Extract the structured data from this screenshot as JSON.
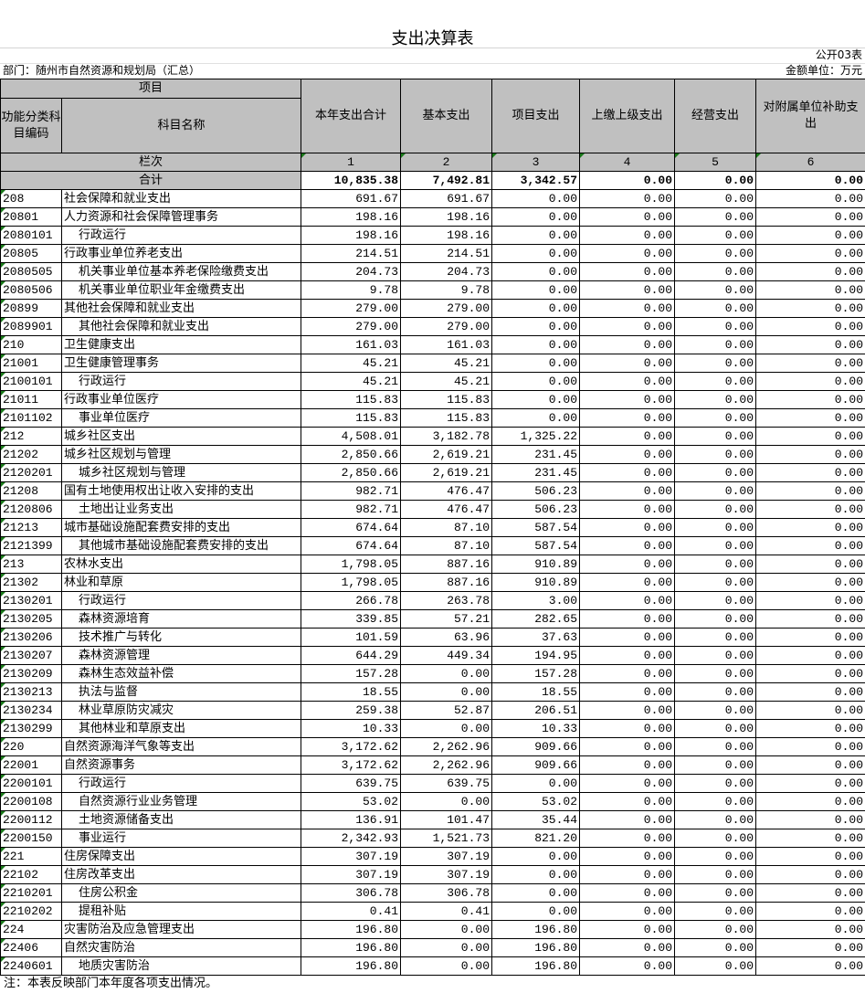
{
  "title": "支出决算表",
  "form_no": "公开03表",
  "department": "部门：随州市自然资源和规划局（汇总）",
  "unit": "金额单位：万元",
  "header": {
    "item": "项目",
    "code": "功能分类科目编码",
    "name": "科目名称",
    "columns": [
      "本年支出合计",
      "基本支出",
      "项目支出",
      "上缴上级支出",
      "经营支出",
      "对附属单位补助支出"
    ],
    "lanci": "栏次",
    "lanci_numbers": [
      "1",
      "2",
      "3",
      "4",
      "5",
      "6"
    ]
  },
  "total": {
    "label": "合计",
    "values": [
      "10,835.38",
      "7,492.81",
      "3,342.57",
      "0.00",
      "0.00",
      "0.00"
    ]
  },
  "rows": [
    {
      "code": "208",
      "name": "社会保障和就业支出",
      "v": [
        "691.67",
        "691.67",
        "0.00",
        "0.00",
        "0.00",
        "0.00"
      ]
    },
    {
      "code": "20801",
      "name": "人力资源和社会保障管理事务",
      "v": [
        "198.16",
        "198.16",
        "0.00",
        "0.00",
        "0.00",
        "0.00"
      ]
    },
    {
      "code": "2080101",
      "name": "行政运行",
      "v": [
        "198.16",
        "198.16",
        "0.00",
        "0.00",
        "0.00",
        "0.00"
      ]
    },
    {
      "code": "20805",
      "name": "行政事业单位养老支出",
      "v": [
        "214.51",
        "214.51",
        "0.00",
        "0.00",
        "0.00",
        "0.00"
      ]
    },
    {
      "code": "2080505",
      "name": "机关事业单位基本养老保险缴费支出",
      "v": [
        "204.73",
        "204.73",
        "0.00",
        "0.00",
        "0.00",
        "0.00"
      ]
    },
    {
      "code": "2080506",
      "name": "机关事业单位职业年金缴费支出",
      "v": [
        "9.78",
        "9.78",
        "0.00",
        "0.00",
        "0.00",
        "0.00"
      ]
    },
    {
      "code": "20899",
      "name": "其他社会保障和就业支出",
      "v": [
        "279.00",
        "279.00",
        "0.00",
        "0.00",
        "0.00",
        "0.00"
      ]
    },
    {
      "code": "2089901",
      "name": "其他社会保障和就业支出",
      "v": [
        "279.00",
        "279.00",
        "0.00",
        "0.00",
        "0.00",
        "0.00"
      ]
    },
    {
      "code": "210",
      "name": "卫生健康支出",
      "v": [
        "161.03",
        "161.03",
        "0.00",
        "0.00",
        "0.00",
        "0.00"
      ]
    },
    {
      "code": "21001",
      "name": "卫生健康管理事务",
      "v": [
        "45.21",
        "45.21",
        "0.00",
        "0.00",
        "0.00",
        "0.00"
      ]
    },
    {
      "code": "2100101",
      "name": "行政运行",
      "v": [
        "45.21",
        "45.21",
        "0.00",
        "0.00",
        "0.00",
        "0.00"
      ]
    },
    {
      "code": "21011",
      "name": "行政事业单位医疗",
      "v": [
        "115.83",
        "115.83",
        "0.00",
        "0.00",
        "0.00",
        "0.00"
      ]
    },
    {
      "code": "2101102",
      "name": "事业单位医疗",
      "v": [
        "115.83",
        "115.83",
        "0.00",
        "0.00",
        "0.00",
        "0.00"
      ]
    },
    {
      "code": "212",
      "name": "城乡社区支出",
      "v": [
        "4,508.01",
        "3,182.78",
        "1,325.22",
        "0.00",
        "0.00",
        "0.00"
      ]
    },
    {
      "code": "21202",
      "name": "城乡社区规划与管理",
      "v": [
        "2,850.66",
        "2,619.21",
        "231.45",
        "0.00",
        "0.00",
        "0.00"
      ]
    },
    {
      "code": "2120201",
      "name": "城乡社区规划与管理",
      "v": [
        "2,850.66",
        "2,619.21",
        "231.45",
        "0.00",
        "0.00",
        "0.00"
      ]
    },
    {
      "code": "21208",
      "name": "国有土地使用权出让收入安排的支出",
      "v": [
        "982.71",
        "476.47",
        "506.23",
        "0.00",
        "0.00",
        "0.00"
      ]
    },
    {
      "code": "2120806",
      "name": "土地出让业务支出",
      "v": [
        "982.71",
        "476.47",
        "506.23",
        "0.00",
        "0.00",
        "0.00"
      ]
    },
    {
      "code": "21213",
      "name": "城市基础设施配套费安排的支出",
      "v": [
        "674.64",
        "87.10",
        "587.54",
        "0.00",
        "0.00",
        "0.00"
      ]
    },
    {
      "code": "2121399",
      "name": "其他城市基础设施配套费安排的支出",
      "v": [
        "674.64",
        "87.10",
        "587.54",
        "0.00",
        "0.00",
        "0.00"
      ]
    },
    {
      "code": "213",
      "name": "农林水支出",
      "v": [
        "1,798.05",
        "887.16",
        "910.89",
        "0.00",
        "0.00",
        "0.00"
      ]
    },
    {
      "code": "21302",
      "name": "林业和草原",
      "v": [
        "1,798.05",
        "887.16",
        "910.89",
        "0.00",
        "0.00",
        "0.00"
      ]
    },
    {
      "code": "2130201",
      "name": "行政运行",
      "v": [
        "266.78",
        "263.78",
        "3.00",
        "0.00",
        "0.00",
        "0.00"
      ]
    },
    {
      "code": "2130205",
      "name": "森林资源培育",
      "v": [
        "339.85",
        "57.21",
        "282.65",
        "0.00",
        "0.00",
        "0.00"
      ]
    },
    {
      "code": "2130206",
      "name": "技术推广与转化",
      "v": [
        "101.59",
        "63.96",
        "37.63",
        "0.00",
        "0.00",
        "0.00"
      ]
    },
    {
      "code": "2130207",
      "name": "森林资源管理",
      "v": [
        "644.29",
        "449.34",
        "194.95",
        "0.00",
        "0.00",
        "0.00"
      ]
    },
    {
      "code": "2130209",
      "name": "森林生态效益补偿",
      "v": [
        "157.28",
        "0.00",
        "157.28",
        "0.00",
        "0.00",
        "0.00"
      ]
    },
    {
      "code": "2130213",
      "name": "执法与监督",
      "v": [
        "18.55",
        "0.00",
        "18.55",
        "0.00",
        "0.00",
        "0.00"
      ]
    },
    {
      "code": "2130234",
      "name": "林业草原防灾减灾",
      "v": [
        "259.38",
        "52.87",
        "206.51",
        "0.00",
        "0.00",
        "0.00"
      ]
    },
    {
      "code": "2130299",
      "name": "其他林业和草原支出",
      "v": [
        "10.33",
        "0.00",
        "10.33",
        "0.00",
        "0.00",
        "0.00"
      ]
    },
    {
      "code": "220",
      "name": "自然资源海洋气象等支出",
      "v": [
        "3,172.62",
        "2,262.96",
        "909.66",
        "0.00",
        "0.00",
        "0.00"
      ]
    },
    {
      "code": "22001",
      "name": "自然资源事务",
      "v": [
        "3,172.62",
        "2,262.96",
        "909.66",
        "0.00",
        "0.00",
        "0.00"
      ]
    },
    {
      "code": "2200101",
      "name": "行政运行",
      "v": [
        "639.75",
        "639.75",
        "0.00",
        "0.00",
        "0.00",
        "0.00"
      ]
    },
    {
      "code": "2200108",
      "name": "自然资源行业业务管理",
      "v": [
        "53.02",
        "0.00",
        "53.02",
        "0.00",
        "0.00",
        "0.00"
      ]
    },
    {
      "code": "2200112",
      "name": "土地资源储备支出",
      "v": [
        "136.91",
        "101.47",
        "35.44",
        "0.00",
        "0.00",
        "0.00"
      ]
    },
    {
      "code": "2200150",
      "name": "事业运行",
      "v": [
        "2,342.93",
        "1,521.73",
        "821.20",
        "0.00",
        "0.00",
        "0.00"
      ]
    },
    {
      "code": "221",
      "name": "住房保障支出",
      "v": [
        "307.19",
        "307.19",
        "0.00",
        "0.00",
        "0.00",
        "0.00"
      ]
    },
    {
      "code": "22102",
      "name": "住房改革支出",
      "v": [
        "307.19",
        "307.19",
        "0.00",
        "0.00",
        "0.00",
        "0.00"
      ]
    },
    {
      "code": "2210201",
      "name": "住房公积金",
      "v": [
        "306.78",
        "306.78",
        "0.00",
        "0.00",
        "0.00",
        "0.00"
      ]
    },
    {
      "code": "2210202",
      "name": "提租补贴",
      "v": [
        "0.41",
        "0.41",
        "0.00",
        "0.00",
        "0.00",
        "0.00"
      ]
    },
    {
      "code": "224",
      "name": "灾害防治及应急管理支出",
      "v": [
        "196.80",
        "0.00",
        "196.80",
        "0.00",
        "0.00",
        "0.00"
      ]
    },
    {
      "code": "22406",
      "name": "自然灾害防治",
      "v": [
        "196.80",
        "0.00",
        "196.80",
        "0.00",
        "0.00",
        "0.00"
      ]
    },
    {
      "code": "2240601",
      "name": "地质灾害防治",
      "v": [
        "196.80",
        "0.00",
        "196.80",
        "0.00",
        "0.00",
        "0.00"
      ]
    }
  ],
  "note": "注：本表反映部门本年度各项支出情况。",
  "colors": {
    "header_bg": "#c0c0c0",
    "cell_marker": "#1a7a1a"
  }
}
